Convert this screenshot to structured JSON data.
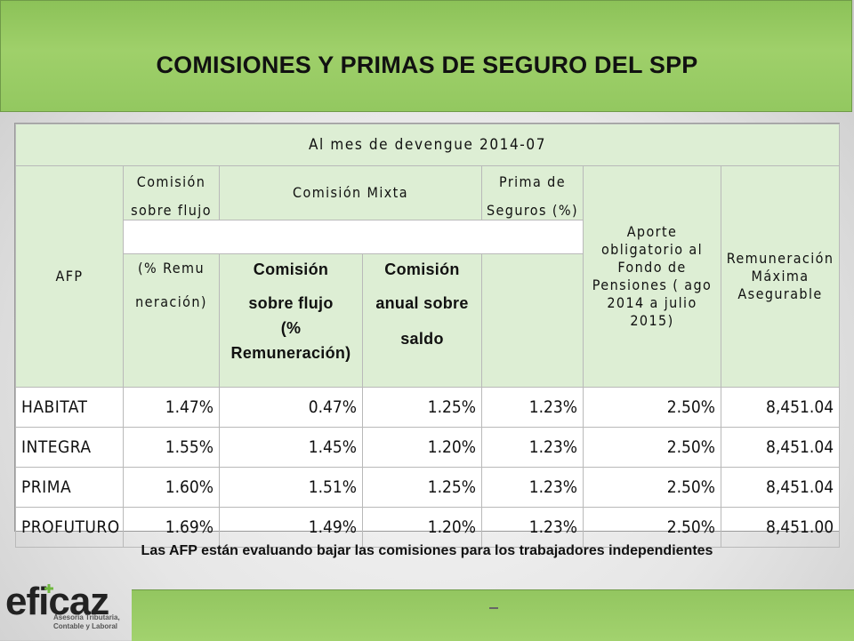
{
  "header": {
    "title": "COMISIONES Y PRIMAS DE SEGURO DEL SPP"
  },
  "table": {
    "period_header": "Al mes de devengue 2014-07",
    "col_afp": "AFP",
    "col_flujo_top_1": "Comisión",
    "col_flujo_top_2": "sobre flujo",
    "col_flujo_sub_1": "(% Remu",
    "col_flujo_sub_2": "neración)",
    "col_mixta": "Comisión Mixta",
    "col_mixta_flujo_1": "Comisión",
    "col_mixta_flujo_2": "sobre flujo",
    "col_mixta_flujo_3": "(%",
    "col_mixta_flujo_4": "Remuneración)",
    "col_mixta_saldo_1": "Comisión",
    "col_mixta_saldo_2": "anual sobre",
    "col_mixta_saldo_3": "saldo",
    "col_prima_1": "Prima de",
    "col_prima_2": "Seguros (%)",
    "col_aporte": "Aporte obligatorio al Fondo de Pensiones ( ago 2014 a julio 2015)",
    "col_remuneracion": "Remuneración Máxima Asegurable",
    "rows": [
      {
        "afp": "HABITAT",
        "flujo": "1.47%",
        "mixta_flujo": "0.47%",
        "mixta_saldo": "1.25%",
        "prima": "1.23%",
        "aporte": "2.50%",
        "rma": "8,451.04"
      },
      {
        "afp": "INTEGRA",
        "flujo": "1.55%",
        "mixta_flujo": "1.45%",
        "mixta_saldo": "1.20%",
        "prima": "1.23%",
        "aporte": "2.50%",
        "rma": "8,451.04"
      },
      {
        "afp": "PRIMA",
        "flujo": "1.60%",
        "mixta_flujo": "1.51%",
        "mixta_saldo": "1.25%",
        "prima": "1.23%",
        "aporte": "2.50%",
        "rma": "8,451.04"
      },
      {
        "afp": "PROFUTURO",
        "flujo": "1.69%",
        "mixta_flujo": "1.49%",
        "mixta_saldo": "1.20%",
        "prima": "1.23%",
        "aporte": "2.50%",
        "rma": "8,451.00"
      }
    ]
  },
  "footer": {
    "note": "Las AFP están evaluando bajar las comisiones para los  trabajadores independientes",
    "logo": "eficaz",
    "logo_sub_1": "Asesoría Tributaria,",
    "logo_sub_2": "Contable y Laboral"
  },
  "colors": {
    "title_bar": "#9fd06a",
    "header_cell": "#ddeed4"
  }
}
